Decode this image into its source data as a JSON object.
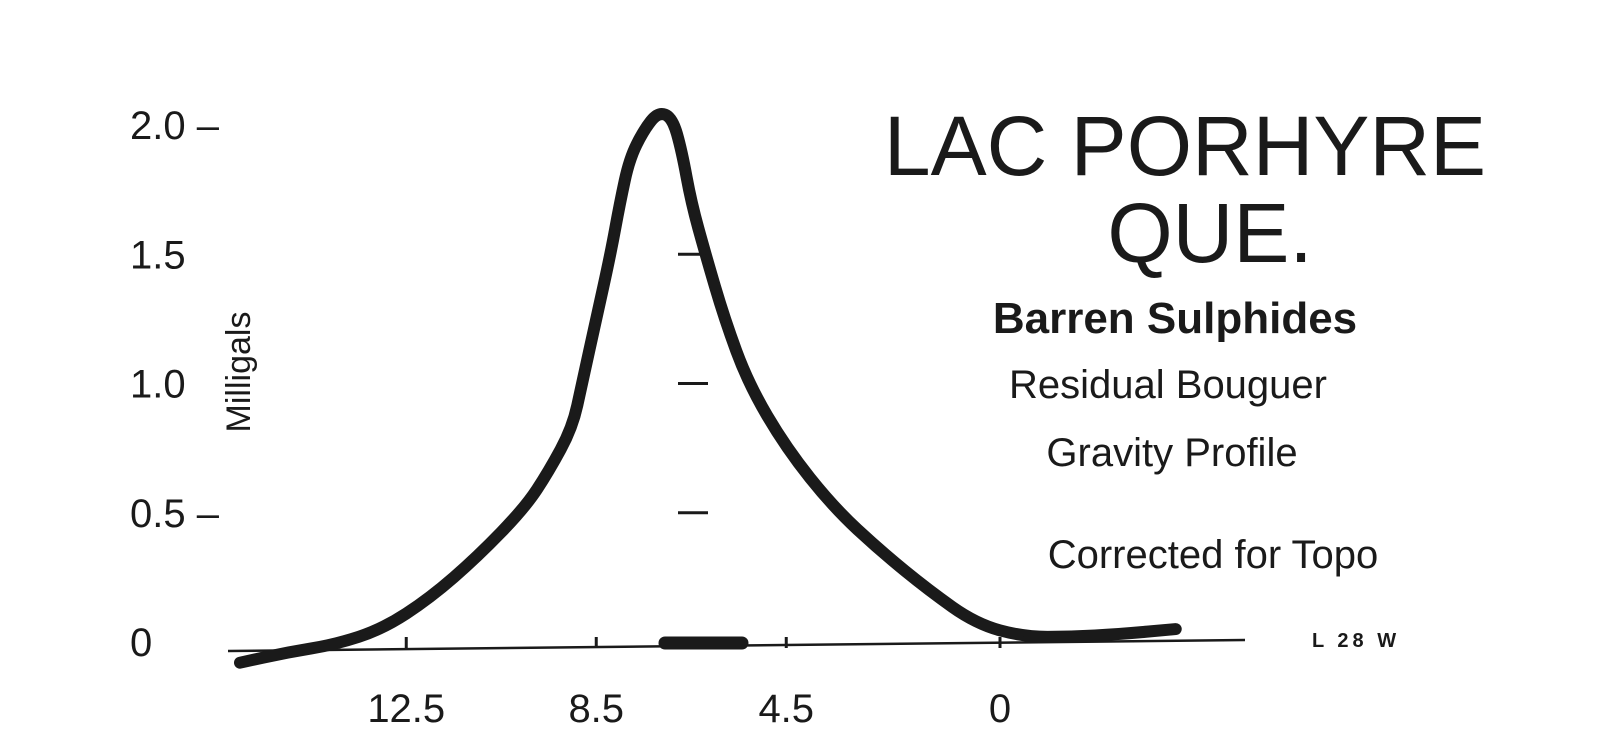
{
  "chart_data": {
    "type": "line",
    "title": [
      "LAC PORHYRE",
      "QUE."
    ],
    "subtitle": [
      "Barren Sulphides",
      "Residual Bouguer",
      "Gravity Profile"
    ],
    "annotation": "Corrected for Topo",
    "line_label": "L 28 W",
    "ylabel": "Milligals",
    "xlabel": "",
    "x_reversed": true,
    "xlim": [
      17.5,
      -5.0
    ],
    "ylim": [
      -0.1,
      2.1
    ],
    "y_ticks": [
      0,
      0.5,
      1.0,
      1.5,
      2.0
    ],
    "y_tick_labels": [
      "0",
      "0.5 –",
      "1.0",
      "1.5",
      "2.0 –"
    ],
    "x_ticks": [
      12.5,
      8.5,
      4.5,
      0
    ],
    "x_tick_labels": [
      "12.5",
      "8.5",
      "4.5",
      "0"
    ],
    "series": [
      {
        "points": [
          [
            16.0,
            -0.08
          ],
          [
            15.0,
            -0.04
          ],
          [
            14.0,
            -0.01
          ],
          [
            13.0,
            0.05
          ],
          [
            12.0,
            0.17
          ],
          [
            11.0,
            0.33
          ],
          [
            10.0,
            0.52
          ],
          [
            9.5,
            0.66
          ],
          [
            9.0,
            0.83
          ],
          [
            8.8,
            1.0
          ],
          [
            8.5,
            1.25
          ],
          [
            8.2,
            1.5
          ],
          [
            8.0,
            1.7
          ],
          [
            7.8,
            1.87
          ],
          [
            7.5,
            1.98
          ],
          [
            7.2,
            2.05
          ],
          [
            6.9,
            2.03
          ],
          [
            6.7,
            1.9
          ],
          [
            6.5,
            1.7
          ],
          [
            6.2,
            1.5
          ],
          [
            5.8,
            1.25
          ],
          [
            5.3,
            1.0
          ],
          [
            4.5,
            0.75
          ],
          [
            3.5,
            0.52
          ],
          [
            2.5,
            0.35
          ],
          [
            1.5,
            0.2
          ],
          [
            0.5,
            0.07
          ],
          [
            -0.5,
            0.02
          ],
          [
            -1.5,
            0.02
          ],
          [
            -2.5,
            0.03
          ],
          [
            -3.7,
            0.05
          ]
        ]
      }
    ],
    "grid": false
  }
}
